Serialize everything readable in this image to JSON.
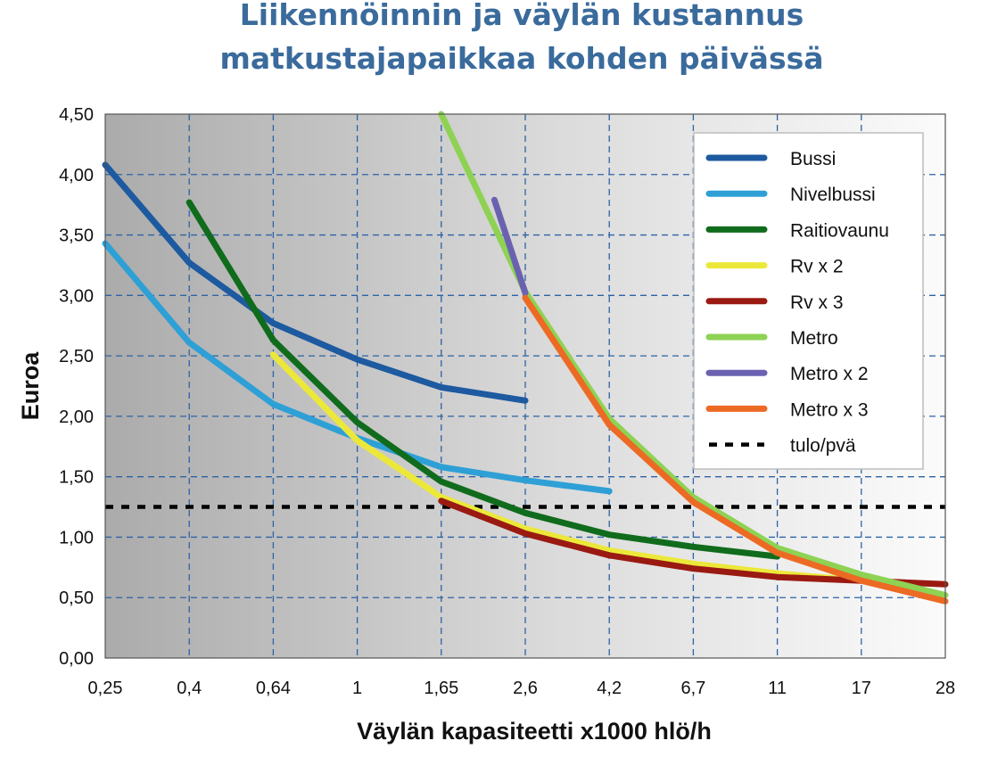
{
  "chart_data": {
    "type": "line",
    "title_lines": [
      "Liikennöinnin ja väylän kustannus",
      "matkustajapaikkaa kohden päivässä"
    ],
    "xlabel": "Väylän kapasiteetti x1000 hlö/h",
    "ylabel": "Euroa",
    "x_axis_kind": "categorical",
    "categories": [
      "0,25",
      "0,4",
      "0,64",
      "1",
      "1,65",
      "2,6",
      "4,2",
      "6,7",
      "11",
      "17",
      "28"
    ],
    "ylim": [
      0,
      4.5
    ],
    "yticks": [
      "0,00",
      "0,50",
      "1,00",
      "1,50",
      "2,00",
      "2,50",
      "3,00",
      "3,50",
      "4,00",
      "4,50"
    ],
    "grid": "dashed",
    "legend_position": "top-right",
    "background": "gradient dark-left to light-right",
    "series": [
      {
        "name": "Bussi",
        "color": "#1d5aa0",
        "points": [
          [
            "0,25",
            4.08
          ],
          [
            "0,4",
            3.27
          ],
          [
            "0,64",
            2.77
          ],
          [
            "1",
            2.47
          ],
          [
            "1,65",
            2.24
          ],
          [
            "2,6",
            2.13
          ]
        ]
      },
      {
        "name": "Nivelbussi",
        "color": "#2ea0d6",
        "points": [
          [
            "0,25",
            3.43
          ],
          [
            "0,4",
            2.61
          ],
          [
            "0,64",
            2.1
          ],
          [
            "1",
            1.82
          ],
          [
            "1,65",
            1.58
          ],
          [
            "2,6",
            1.47
          ],
          [
            "4,2",
            1.38
          ]
        ]
      },
      {
        "name": "Raitiovaunu",
        "color": "#106c1c",
        "points": [
          [
            "0,4",
            3.77
          ],
          [
            "0,64",
            2.63
          ],
          [
            "1",
            1.95
          ],
          [
            "1,65",
            1.46
          ],
          [
            "2,6",
            1.2
          ],
          [
            "4,2",
            1.02
          ],
          [
            "6,7",
            0.92
          ],
          [
            "11",
            0.84
          ]
        ]
      },
      {
        "name": "Rv x 2",
        "color": "#ece83a",
        "points": [
          [
            "0,64",
            2.51
          ],
          [
            "1",
            1.8
          ],
          [
            "1,65",
            1.33
          ],
          [
            "2,6",
            1.07
          ],
          [
            "4,2",
            0.89
          ],
          [
            "6,7",
            0.78
          ],
          [
            "11",
            0.7
          ],
          [
            "17",
            0.64
          ]
        ]
      },
      {
        "name": "Rv x 3",
        "color": "#9a1a12",
        "points": [
          [
            "1,65",
            1.3
          ],
          [
            "2,6",
            1.03
          ],
          [
            "4,2",
            0.85
          ],
          [
            "6,7",
            0.74
          ],
          [
            "11",
            0.67
          ],
          [
            "17",
            0.64
          ],
          [
            "28",
            0.61
          ]
        ]
      },
      {
        "name": "Metro",
        "color": "#8ed253",
        "points": [
          [
            "1,65",
            4.5
          ],
          [
            "2,6",
            3.03
          ],
          [
            "4,2",
            1.98
          ],
          [
            "6,7",
            1.33
          ],
          [
            "11",
            0.91
          ],
          [
            "17",
            0.69
          ],
          [
            "28",
            0.52
          ]
        ]
      },
      {
        "name": "Metro x 2",
        "color": "#6a62b0",
        "points": [
          [
            2.2,
            3.79
          ],
          [
            "2,6",
            3.02
          ]
        ]
      },
      {
        "name": "Metro x 3",
        "color": "#ec6a24",
        "points": [
          [
            "2,6",
            2.98
          ],
          [
            "4,2",
            1.93
          ],
          [
            "6,7",
            1.29
          ],
          [
            "11",
            0.87
          ],
          [
            "17",
            0.64
          ],
          [
            "28",
            0.47
          ]
        ]
      }
    ],
    "reference_line": {
      "name": "tulo/pvä",
      "value": 1.25,
      "style": "dotted",
      "color": "#000000"
    }
  }
}
